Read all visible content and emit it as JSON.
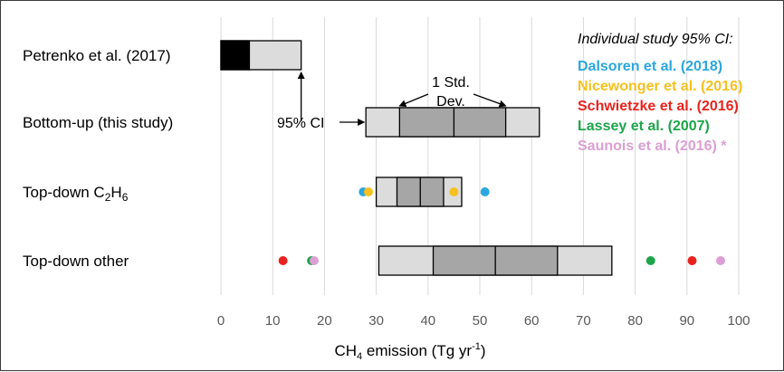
{
  "chart_data": {
    "type": "box",
    "xlabel": {
      "pre": "CH",
      "sub": "4",
      "mid": " emission (Tg yr",
      "sup": "-1",
      "post": ")"
    },
    "xlim": [
      0,
      100
    ],
    "x_ticks": [
      0,
      10,
      20,
      30,
      40,
      50,
      60,
      70,
      80,
      90,
      100
    ],
    "grid": true,
    "categories": [
      {
        "label": "Petrenko et al. (2017)"
      },
      {
        "label": "Bottom-up (this study)"
      },
      {
        "label_pre": "Top-down C",
        "label_sub1": "2",
        "label_mid": "H",
        "label_sub2": "6"
      },
      {
        "label": "Top-down other"
      }
    ],
    "boxes": [
      {
        "category": "Petrenko et al. (2017)",
        "ci95": [
          0,
          15.5
        ],
        "highlight": [
          0,
          5.5
        ]
      },
      {
        "category": "Bottom-up (this study)",
        "ci95": [
          28,
          61.5
        ],
        "std1": [
          34.5,
          55
        ],
        "center": 45
      },
      {
        "category": "Top-down C2H6",
        "ci95": [
          30,
          46.5
        ],
        "std1": [
          34,
          43
        ],
        "center": 38.5
      },
      {
        "category": "Top-down other",
        "ci95": [
          30.5,
          75.5
        ],
        "std1": [
          41,
          65
        ],
        "center": 53
      }
    ],
    "studies": [
      {
        "name": "Dalsoren et al. (2018)",
        "color": "#2aa7de"
      },
      {
        "name": "Nicewonger et al. (2016)",
        "color": "#f7c01f"
      },
      {
        "name": "Schwietzke et al. (2016)",
        "color": "#e8231e"
      },
      {
        "name": "Lassey et al. (2007)",
        "color": "#1ea54a"
      },
      {
        "name": "Saunois et al. (2016) *",
        "color": "#dc9fd3"
      }
    ],
    "study_points": [
      {
        "study": "Dalsoren et al. (2018)",
        "category": "Top-down C2H6",
        "x": 27.5
      },
      {
        "study": "Nicewonger et al. (2016)",
        "category": "Top-down C2H6",
        "x": 28.5
      },
      {
        "study": "Nicewonger et al. (2016)",
        "category": "Top-down C2H6",
        "x": 45
      },
      {
        "study": "Dalsoren et al. (2018)",
        "category": "Top-down C2H6",
        "x": 51
      },
      {
        "study": "Schwietzke et al. (2016)",
        "category": "Top-down other",
        "x": 12
      },
      {
        "study": "Lassey et al. (2007)",
        "category": "Top-down other",
        "x": 17.5
      },
      {
        "study": "Saunois et al. (2016) *",
        "category": "Top-down other",
        "x": 18
      },
      {
        "study": "Lassey et al. (2007)",
        "category": "Top-down other",
        "x": 83
      },
      {
        "study": "Schwietzke et al. (2016)",
        "category": "Top-down other",
        "x": 91
      },
      {
        "study": "Saunois et al. (2016) *",
        "category": "Top-down other",
        "x": 96.5
      }
    ],
    "legend_title": "Individual study 95% CI:",
    "legend_position": "top-right",
    "annotations": {
      "std_dev_line1": "1 Std.",
      "std_dev_line2": "Dev.",
      "ci": "95% CI"
    },
    "colors": {
      "ci_fill": "#dcdcdc",
      "std_fill": "#a6a6a6",
      "highlight_fill": "#000000",
      "grid": "#d9d9d9",
      "axis_text": "#595959"
    }
  }
}
